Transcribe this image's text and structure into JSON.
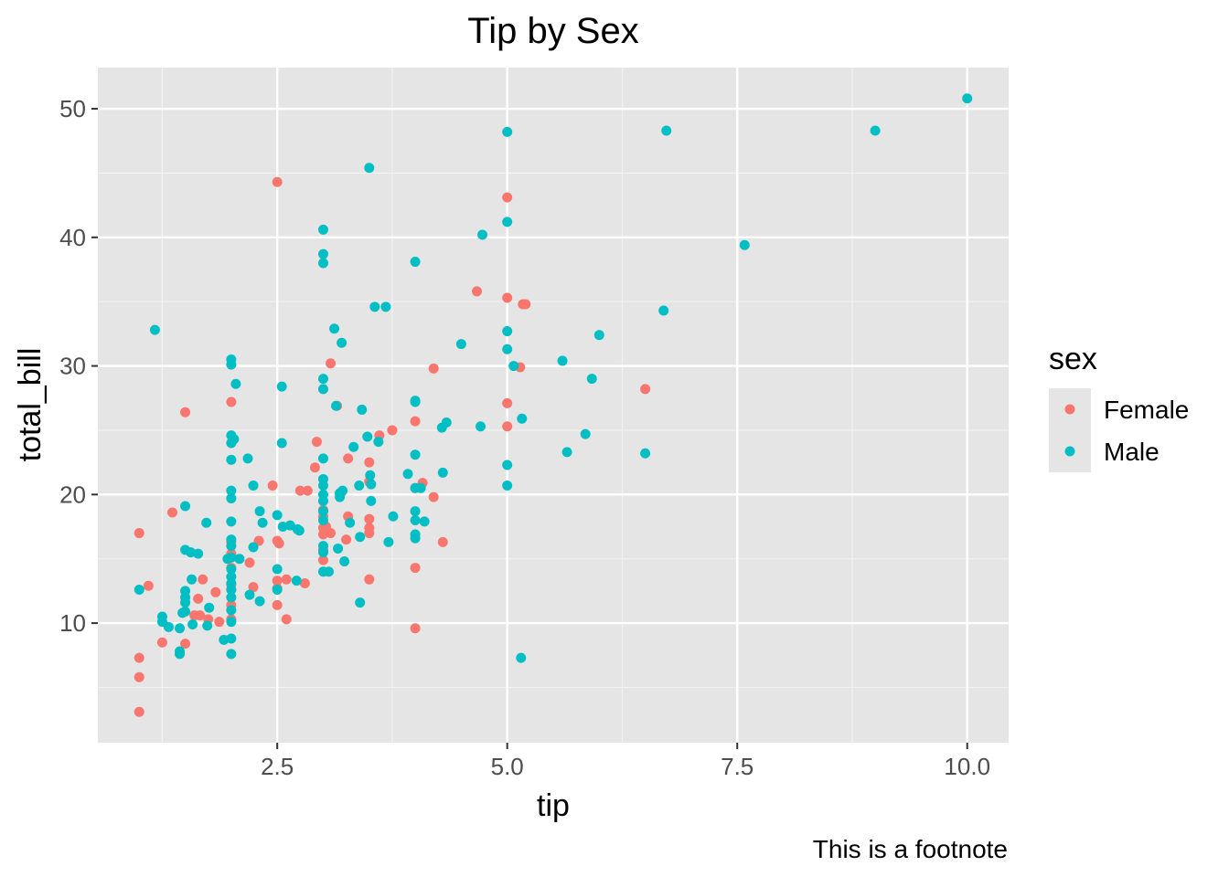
{
  "chart_data": {
    "type": "scatter",
    "title": "Tip by Sex",
    "xlabel": "tip",
    "ylabel": "total_bill",
    "caption": "This is a footnote",
    "xlim": [
      0.55,
      10.45
    ],
    "ylim": [
      0.7,
      53.2
    ],
    "x_ticks": [
      2.5,
      5.0,
      7.5,
      10.0
    ],
    "x_tick_labels": [
      "2.5",
      "5.0",
      "7.5",
      "10.0"
    ],
    "x_minor_ticks": [
      1.25,
      3.75,
      6.25,
      8.75
    ],
    "y_ticks": [
      10,
      20,
      30,
      40,
      50
    ],
    "y_tick_labels": [
      "10",
      "20",
      "30",
      "40",
      "50"
    ],
    "y_minor_ticks": [
      5,
      15,
      25,
      35,
      45
    ],
    "grid": true,
    "panel_background": "#e5e5e5",
    "legend": {
      "title": "sex",
      "placement": "right",
      "entries": [
        "Female",
        "Male"
      ]
    },
    "series": [
      {
        "name": "Female",
        "color": "#F8766D",
        "points": [
          [
            1.0,
            17.0
          ],
          [
            1.0,
            7.3
          ],
          [
            1.0,
            5.8
          ],
          [
            1.0,
            3.1
          ],
          [
            1.1,
            12.9
          ],
          [
            1.25,
            8.5
          ],
          [
            1.36,
            18.6
          ],
          [
            1.5,
            26.4
          ],
          [
            1.5,
            8.4
          ],
          [
            1.6,
            10.6
          ],
          [
            1.66,
            10.6
          ],
          [
            1.64,
            11.9
          ],
          [
            1.69,
            13.4
          ],
          [
            1.75,
            10.3
          ],
          [
            1.83,
            12.4
          ],
          [
            1.87,
            10.1
          ],
          [
            2.0,
            27.2
          ],
          [
            2.0,
            16.3
          ],
          [
            2.0,
            15.4
          ],
          [
            2.0,
            14.3
          ],
          [
            2.0,
            13.0
          ],
          [
            2.0,
            12.6
          ],
          [
            2.0,
            11.4
          ],
          [
            2.0,
            10.3
          ],
          [
            2.2,
            14.7
          ],
          [
            2.24,
            12.8
          ],
          [
            2.3,
            16.4
          ],
          [
            2.45,
            20.7
          ],
          [
            2.5,
            44.3
          ],
          [
            2.5,
            16.4
          ],
          [
            2.52,
            16.2
          ],
          [
            2.5,
            13.3
          ],
          [
            2.5,
            12.7
          ],
          [
            2.5,
            11.4
          ],
          [
            2.6,
            13.4
          ],
          [
            2.6,
            10.3
          ],
          [
            2.75,
            20.3
          ],
          [
            2.8,
            13.1
          ],
          [
            2.83,
            20.3
          ],
          [
            2.91,
            22.1
          ],
          [
            2.93,
            24.1
          ],
          [
            3.0,
            18.8
          ],
          [
            3.0,
            18.3
          ],
          [
            3.0,
            17.4
          ],
          [
            3.0,
            16.9
          ],
          [
            3.0,
            15.7
          ],
          [
            3.0,
            14.9
          ],
          [
            3.03,
            17.5
          ],
          [
            3.08,
            17.0
          ],
          [
            3.08,
            30.2
          ],
          [
            3.15,
            26.9
          ],
          [
            3.2,
            20.2
          ],
          [
            3.25,
            16.5
          ],
          [
            3.27,
            22.8
          ],
          [
            3.27,
            18.3
          ],
          [
            3.5,
            22.5
          ],
          [
            3.5,
            21.0
          ],
          [
            3.5,
            18.1
          ],
          [
            3.5,
            17.4
          ],
          [
            3.5,
            17.0
          ],
          [
            3.5,
            13.4
          ],
          [
            3.61,
            24.6
          ],
          [
            3.75,
            25.0
          ],
          [
            4.0,
            25.7
          ],
          [
            4.0,
            20.5
          ],
          [
            4.0,
            14.3
          ],
          [
            4.0,
            9.6
          ],
          [
            4.08,
            20.9
          ],
          [
            4.2,
            29.8
          ],
          [
            4.2,
            19.8
          ],
          [
            4.3,
            16.3
          ],
          [
            4.67,
            35.8
          ],
          [
            5.0,
            43.1
          ],
          [
            5.0,
            35.3
          ],
          [
            5.0,
            27.1
          ],
          [
            5.0,
            25.3
          ],
          [
            5.14,
            29.9
          ],
          [
            5.17,
            34.8
          ],
          [
            5.2,
            34.8
          ],
          [
            6.5,
            28.2
          ]
        ]
      },
      {
        "name": "Male",
        "color": "#00BFC4",
        "points": [
          [
            1.0,
            12.6
          ],
          [
            1.17,
            32.8
          ],
          [
            1.25,
            10.5
          ],
          [
            1.25,
            10.1
          ],
          [
            1.32,
            9.7
          ],
          [
            1.44,
            9.6
          ],
          [
            1.44,
            7.8
          ],
          [
            1.44,
            7.6
          ],
          [
            1.47,
            10.8
          ],
          [
            1.5,
            19.1
          ],
          [
            1.5,
            15.7
          ],
          [
            1.5,
            12.5
          ],
          [
            1.5,
            12.0
          ],
          [
            1.5,
            11.6
          ],
          [
            1.5,
            10.9
          ],
          [
            1.56,
            15.5
          ],
          [
            1.57,
            13.4
          ],
          [
            1.58,
            9.9
          ],
          [
            1.64,
            15.4
          ],
          [
            1.73,
            17.8
          ],
          [
            1.74,
            9.8
          ],
          [
            1.76,
            11.2
          ],
          [
            1.92,
            8.7
          ],
          [
            1.96,
            15.0
          ],
          [
            2.0,
            30.5
          ],
          [
            2.0,
            30.1
          ],
          [
            2.0,
            24.6
          ],
          [
            2.0,
            24.0
          ],
          [
            2.0,
            22.7
          ],
          [
            2.0,
            20.3
          ],
          [
            2.0,
            19.7
          ],
          [
            2.0,
            17.9
          ],
          [
            2.0,
            16.5
          ],
          [
            2.0,
            16.0
          ],
          [
            2.0,
            15.1
          ],
          [
            2.0,
            14.2
          ],
          [
            2.0,
            13.6
          ],
          [
            2.0,
            13.1
          ],
          [
            2.0,
            12.6
          ],
          [
            2.0,
            12.0
          ],
          [
            2.0,
            11.0
          ],
          [
            2.0,
            10.1
          ],
          [
            2.0,
            8.8
          ],
          [
            2.0,
            7.6
          ],
          [
            2.03,
            24.3
          ],
          [
            2.05,
            28.6
          ],
          [
            2.09,
            15.0
          ],
          [
            2.18,
            22.8
          ],
          [
            2.24,
            20.7
          ],
          [
            2.24,
            15.9
          ],
          [
            2.2,
            12.2
          ],
          [
            2.31,
            18.7
          ],
          [
            2.34,
            17.8
          ],
          [
            2.31,
            11.7
          ],
          [
            2.5,
            18.4
          ],
          [
            2.5,
            14.2
          ],
          [
            2.5,
            12.6
          ],
          [
            2.55,
            28.4
          ],
          [
            2.55,
            24.0
          ],
          [
            2.56,
            17.5
          ],
          [
            2.64,
            17.6
          ],
          [
            2.72,
            17.3
          ],
          [
            2.74,
            17.2
          ],
          [
            2.71,
            13.3
          ],
          [
            3.0,
            40.6
          ],
          [
            3.0,
            38.7
          ],
          [
            3.0,
            38.0
          ],
          [
            3.0,
            29.0
          ],
          [
            3.0,
            28.2
          ],
          [
            3.0,
            22.8
          ],
          [
            3.0,
            21.2
          ],
          [
            3.0,
            20.7
          ],
          [
            3.0,
            20.0
          ],
          [
            3.0,
            19.5
          ],
          [
            3.0,
            18.7
          ],
          [
            3.0,
            18.0
          ],
          [
            3.0,
            16.0
          ],
          [
            3.0,
            15.5
          ],
          [
            3.0,
            14.0
          ],
          [
            3.06,
            14.0
          ],
          [
            3.12,
            32.9
          ],
          [
            3.14,
            26.9
          ],
          [
            3.16,
            15.8
          ],
          [
            3.18,
            20.1
          ],
          [
            3.18,
            19.8
          ],
          [
            3.2,
            31.8
          ],
          [
            3.21,
            20.3
          ],
          [
            3.23,
            14.8
          ],
          [
            3.29,
            17.8
          ],
          [
            3.33,
            23.7
          ],
          [
            3.39,
            20.7
          ],
          [
            3.4,
            16.7
          ],
          [
            3.42,
            26.6
          ],
          [
            3.4,
            11.6
          ],
          [
            3.48,
            24.5
          ],
          [
            3.5,
            45.4
          ],
          [
            3.51,
            21.5
          ],
          [
            3.52,
            20.8
          ],
          [
            3.52,
            19.5
          ],
          [
            3.56,
            34.6
          ],
          [
            3.6,
            24.1
          ],
          [
            3.68,
            34.6
          ],
          [
            3.71,
            16.3
          ],
          [
            3.76,
            18.3
          ],
          [
            3.92,
            21.6
          ],
          [
            4.0,
            38.1
          ],
          [
            4.0,
            27.3
          ],
          [
            4.0,
            27.2
          ],
          [
            4.0,
            23.1
          ],
          [
            4.0,
            20.5
          ],
          [
            4.0,
            18.7
          ],
          [
            4.0,
            18.0
          ],
          [
            4.0,
            16.9
          ],
          [
            4.0,
            16.6
          ],
          [
            4.06,
            20.5
          ],
          [
            4.1,
            17.9
          ],
          [
            4.29,
            25.2
          ],
          [
            4.3,
            21.7
          ],
          [
            4.34,
            25.6
          ],
          [
            4.5,
            31.7
          ],
          [
            4.71,
            25.3
          ],
          [
            4.73,
            40.2
          ],
          [
            5.0,
            48.2
          ],
          [
            5.0,
            41.2
          ],
          [
            5.0,
            32.7
          ],
          [
            5.0,
            31.3
          ],
          [
            5.0,
            22.3
          ],
          [
            5.0,
            20.7
          ],
          [
            5.07,
            30.0
          ],
          [
            5.16,
            25.9
          ],
          [
            5.15,
            7.3
          ],
          [
            5.6,
            30.4
          ],
          [
            5.65,
            23.3
          ],
          [
            5.85,
            24.7
          ],
          [
            5.92,
            29.0
          ],
          [
            6.0,
            32.4
          ],
          [
            6.5,
            23.2
          ],
          [
            6.7,
            34.3
          ],
          [
            6.73,
            48.3
          ],
          [
            7.58,
            39.4
          ],
          [
            9.0,
            48.3
          ],
          [
            10.0,
            50.8
          ]
        ]
      }
    ]
  }
}
